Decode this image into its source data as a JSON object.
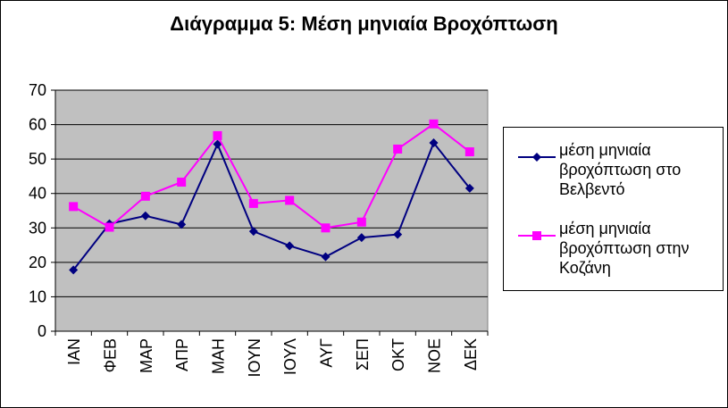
{
  "chart_data": {
    "type": "line",
    "title": "Διάγραμμα 5: Μέση μηνιαία Βροχόπτωση",
    "categories": [
      "ΙΑΝ",
      "ΦΕΒ",
      "ΜΑΡ",
      "ΑΠΡ",
      "ΜΑΗ",
      "ΙΟΥΝ",
      "ΙΟΥΛ",
      "ΑΥΓ",
      "ΣΕΠ",
      "ΟΚΤ",
      "ΝΟΕ",
      "ΔΕΚ"
    ],
    "ylim": [
      0,
      70
    ],
    "yticks": [
      0,
      10,
      20,
      30,
      40,
      50,
      60,
      70
    ],
    "grid": true,
    "legend_position": "right",
    "plot_background": "#C0C0C0",
    "series": [
      {
        "name": "μέση μηνιαία βροχόπτωση στο Βελβεντό",
        "name_lines": [
          "μέση μηνιαία",
          "βροχόπτωση στο",
          "Βελβεντό"
        ],
        "color": "#000080",
        "marker": "diamond",
        "values": [
          17.8,
          31.2,
          33.5,
          31.0,
          54.3,
          29.0,
          24.8,
          21.6,
          27.2,
          28.1,
          54.7,
          41.5
        ]
      },
      {
        "name": "μέση μηνιαία βροχόπτωση στην Κοζάνη",
        "name_lines": [
          "μέση μηνιαία",
          "βροχόπτωση στην",
          "Κοζάνη"
        ],
        "color": "#FF00FF",
        "marker": "square",
        "values": [
          36.2,
          30.2,
          39.2,
          43.3,
          56.8,
          37.1,
          38.0,
          30.0,
          31.7,
          52.9,
          60.2,
          52.1
        ]
      }
    ]
  }
}
